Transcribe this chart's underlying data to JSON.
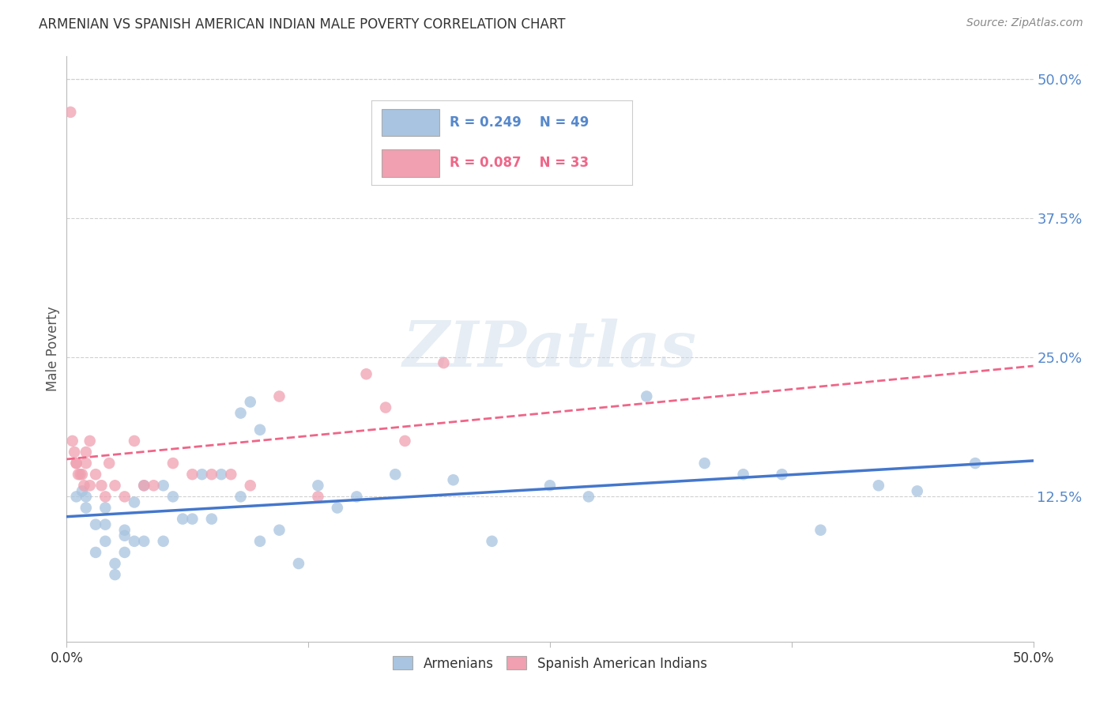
{
  "title": "ARMENIAN VS SPANISH AMERICAN INDIAN MALE POVERTY CORRELATION CHART",
  "source": "Source: ZipAtlas.com",
  "ylabel": "Male Poverty",
  "xlim": [
    0.0,
    0.5
  ],
  "ylim": [
    -0.005,
    0.52
  ],
  "y_tick_positions_right": [
    0.5,
    0.375,
    0.25,
    0.125
  ],
  "y_tick_labels_right": [
    "50.0%",
    "37.5%",
    "25.0%",
    "12.5%"
  ],
  "x_ticks": [
    0.0,
    0.125,
    0.25,
    0.375,
    0.5
  ],
  "grid_color": "#d0d0d0",
  "background_color": "#ffffff",
  "watermark": "ZIPatlas",
  "legend_R_blue": "R = 0.249",
  "legend_N_blue": "N = 49",
  "legend_R_pink": "R = 0.087",
  "legend_N_pink": "N = 33",
  "blue_color": "#a8c4e0",
  "pink_color": "#f0a0b0",
  "blue_line_color": "#4477cc",
  "pink_line_color": "#ee6688",
  "title_color": "#333333",
  "source_color": "#888888",
  "right_axis_color": "#5588cc",
  "armenian_x": [
    0.005,
    0.008,
    0.01,
    0.01,
    0.015,
    0.015,
    0.02,
    0.02,
    0.02,
    0.025,
    0.025,
    0.03,
    0.03,
    0.03,
    0.035,
    0.035,
    0.04,
    0.04,
    0.05,
    0.05,
    0.055,
    0.06,
    0.065,
    0.07,
    0.075,
    0.08,
    0.09,
    0.09,
    0.095,
    0.1,
    0.1,
    0.11,
    0.12,
    0.13,
    0.14,
    0.15,
    0.17,
    0.2,
    0.22,
    0.25,
    0.27,
    0.3,
    0.33,
    0.35,
    0.37,
    0.39,
    0.42,
    0.44,
    0.47
  ],
  "armenian_y": [
    0.125,
    0.13,
    0.115,
    0.125,
    0.1,
    0.075,
    0.1,
    0.115,
    0.085,
    0.065,
    0.055,
    0.095,
    0.075,
    0.09,
    0.12,
    0.085,
    0.135,
    0.085,
    0.135,
    0.085,
    0.125,
    0.105,
    0.105,
    0.145,
    0.105,
    0.145,
    0.125,
    0.2,
    0.21,
    0.185,
    0.085,
    0.095,
    0.065,
    0.135,
    0.115,
    0.125,
    0.145,
    0.14,
    0.085,
    0.135,
    0.125,
    0.215,
    0.155,
    0.145,
    0.145,
    0.095,
    0.135,
    0.13,
    0.155
  ],
  "spanish_ai_x": [
    0.002,
    0.003,
    0.004,
    0.005,
    0.005,
    0.006,
    0.007,
    0.008,
    0.009,
    0.01,
    0.01,
    0.012,
    0.012,
    0.015,
    0.018,
    0.02,
    0.022,
    0.025,
    0.03,
    0.035,
    0.04,
    0.045,
    0.055,
    0.065,
    0.075,
    0.085,
    0.095,
    0.11,
    0.13,
    0.155,
    0.165,
    0.175,
    0.195
  ],
  "spanish_ai_y": [
    0.47,
    0.175,
    0.165,
    0.155,
    0.155,
    0.145,
    0.145,
    0.145,
    0.135,
    0.155,
    0.165,
    0.175,
    0.135,
    0.145,
    0.135,
    0.125,
    0.155,
    0.135,
    0.125,
    0.175,
    0.135,
    0.135,
    0.155,
    0.145,
    0.145,
    0.145,
    0.135,
    0.215,
    0.125,
    0.235,
    0.205,
    0.175,
    0.245
  ]
}
